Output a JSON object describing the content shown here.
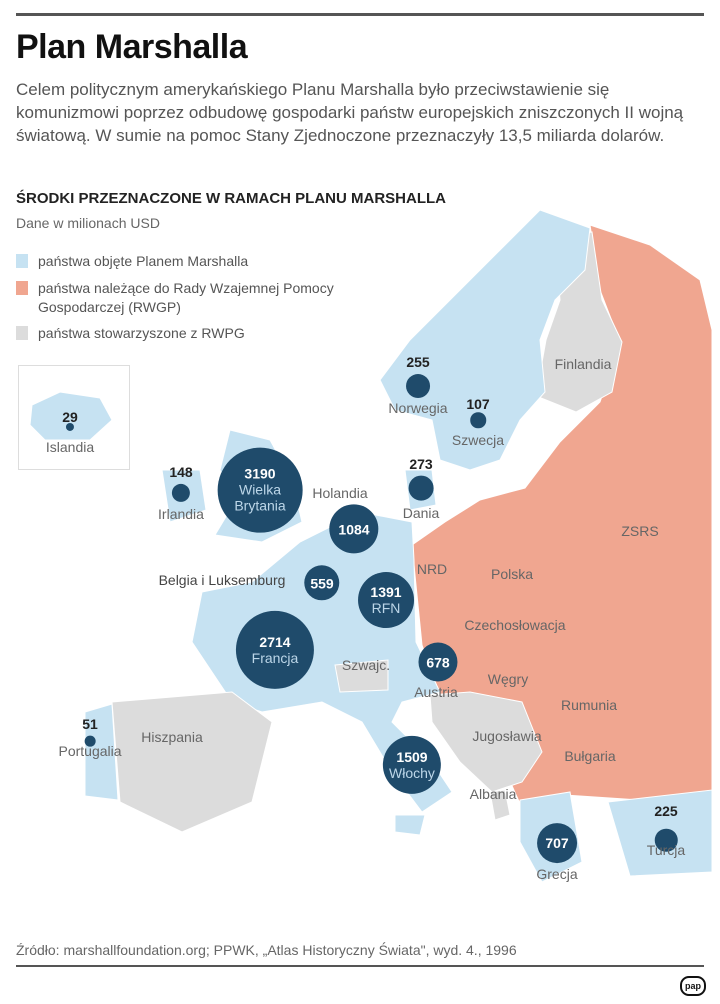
{
  "title": "Plan Marshalla",
  "lead": "Celem politycznym amerykańskiego Planu Marshalla było przeciwstawienie się komunizmowi poprzez odbudowę gospodarki państw europejskich zniszczonych II wojną światową. W sumie na pomoc Stany Zjednoczone przeznaczyły 13,5 miliarda dolarów.",
  "subtitle": "ŚRODKI PRZEZNACZONE W RAMACH PLANU MARSHALLA",
  "unit": "Dane w milionach USD",
  "colors": {
    "marshall": "#c6e2f2",
    "rwpg": "#f0a690",
    "associated": "#dcdcdc",
    "bubble": "#1f4b6b"
  },
  "legend": [
    {
      "label": "państwa objęte Planem Marshalla",
      "color": "#c6e2f2"
    },
    {
      "label": "państwa należące do Rady Wzajemnej Pomocy Gospodarczej (RWGP)",
      "color": "#f0a690"
    },
    {
      "label": "państwa stowarzyszone z RWPG",
      "color": "#dcdcdc"
    }
  ],
  "recipients": [
    {
      "name": "Islandia",
      "value": 29
    },
    {
      "name": "Norwegia",
      "value": 255
    },
    {
      "name": "Szwecja",
      "value": 107
    },
    {
      "name": "Irlandia",
      "value": 148
    },
    {
      "name": "Wielka Brytania",
      "value": 3190
    },
    {
      "name": "Dania",
      "value": 273
    },
    {
      "name": "Holandia",
      "value": 1084
    },
    {
      "name": "Belgia i Luksemburg",
      "value": 559
    },
    {
      "name": "RFN",
      "value": 1391
    },
    {
      "name": "Francja",
      "value": 2714
    },
    {
      "name": "Austria",
      "value": 678
    },
    {
      "name": "Portugalia",
      "value": 51
    },
    {
      "name": "Włochy",
      "value": 1509
    },
    {
      "name": "Grecja",
      "value": 707
    },
    {
      "name": "Turcja",
      "value": 225
    }
  ],
  "other_countries": [
    "Finlandia",
    "NRD",
    "Polska",
    "ZSRS",
    "Czechosłowacja",
    "Węgry",
    "Rumunia",
    "Szwajc.",
    "Jugosławia",
    "Bułgaria",
    "Albania",
    "Hiszpania"
  ],
  "source": "Źródło: marshallfoundation.org; PPWK, „Atlas Historyczny Świata\", wyd. 4., 1996",
  "logo": "pap"
}
